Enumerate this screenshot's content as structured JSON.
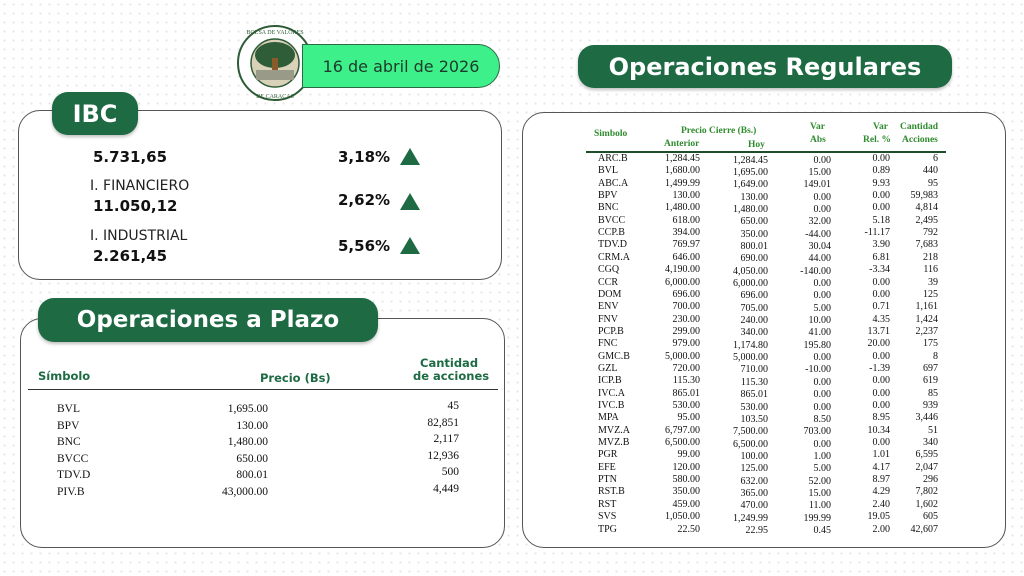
{
  "header": {
    "logo_text": "BOLSA DE VALORES DE CARACAS",
    "date": "16 de abril de 2026",
    "colors": {
      "brand": "#1d6a43",
      "date_pill": "#3ef08a"
    }
  },
  "ibc": {
    "title": "IBC",
    "rows": [
      {
        "label": "",
        "value": "5.731,65",
        "pct": "3,18%",
        "trend": "up"
      },
      {
        "label": "I. FINANCIERO",
        "value": "11.050,12",
        "pct": "2,62%",
        "trend": "up"
      },
      {
        "label": "I. INDUSTRIAL",
        "value": "2.261,45",
        "pct": "5,56%",
        "trend": "up"
      }
    ]
  },
  "plazo": {
    "title": "Operaciones a Plazo",
    "headers": {
      "simbolo": "Símbolo",
      "precio": "Precio (Bs)",
      "cantidad_1": "Cantidad",
      "cantidad_2": "de acciones"
    },
    "rows": [
      [
        "BVL",
        "1,695.00",
        "45"
      ],
      [
        "BPV",
        "130.00",
        "82,851"
      ],
      [
        "BNC",
        "1,480.00",
        "2,117"
      ],
      [
        "BVCC",
        "650.00",
        "12,936"
      ],
      [
        "TDV.D",
        "800.01",
        "500"
      ],
      [
        "PIV.B",
        "43,000.00",
        "4,449"
      ]
    ]
  },
  "regulares": {
    "title": "Operaciones Regulares",
    "headers": {
      "simbolo": "Simbolo",
      "precio_cierre": "Precio Cierre (Bs.)",
      "anterior": "Anterior",
      "hoy": "Hoy",
      "var_1": "Var",
      "abs": "Abs",
      "var_2": "Var",
      "rel": "Rel. %",
      "cantidad": "Cantidad",
      "acciones": "Acciones"
    },
    "rows": [
      [
        "ARC.B",
        "1,284.45",
        "1,284.45",
        "0.00",
        "0.00",
        "6"
      ],
      [
        "BVL",
        "1,680.00",
        "1,695.00",
        "15.00",
        "0.89",
        "440"
      ],
      [
        "ABC.A",
        "1,499.99",
        "1,649.00",
        "149.01",
        "9.93",
        "95"
      ],
      [
        "BPV",
        "130.00",
        "130.00",
        "0.00",
        "0.00",
        "59,983"
      ],
      [
        "BNC",
        "1,480.00",
        "1,480.00",
        "0.00",
        "0.00",
        "4,814"
      ],
      [
        "BVCC",
        "618.00",
        "650.00",
        "32.00",
        "5.18",
        "2,495"
      ],
      [
        "CCP.B",
        "394.00",
        "350.00",
        "-44.00",
        "-11.17",
        "792"
      ],
      [
        "TDV.D",
        "769.97",
        "800.01",
        "30.04",
        "3.90",
        "7,683"
      ],
      [
        "CRM.A",
        "646.00",
        "690.00",
        "44.00",
        "6.81",
        "218"
      ],
      [
        "CGQ",
        "4,190.00",
        "4,050.00",
        "-140.00",
        "-3.34",
        "116"
      ],
      [
        "CCR",
        "6,000.00",
        "6,000.00",
        "0.00",
        "0.00",
        "39"
      ],
      [
        "DOM",
        "696.00",
        "696.00",
        "0.00",
        "0.00",
        "125"
      ],
      [
        "ENV",
        "700.00",
        "705.00",
        "5.00",
        "0.71",
        "1,161"
      ],
      [
        "FNV",
        "230.00",
        "240.00",
        "10.00",
        "4.35",
        "1,424"
      ],
      [
        "PCP.B",
        "299.00",
        "340.00",
        "41.00",
        "13.71",
        "2,237"
      ],
      [
        "FNC",
        "979.00",
        "1,174.80",
        "195.80",
        "20.00",
        "175"
      ],
      [
        "GMC.B",
        "5,000.00",
        "5,000.00",
        "0.00",
        "0.00",
        "8"
      ],
      [
        "GZL",
        "720.00",
        "710.00",
        "-10.00",
        "-1.39",
        "697"
      ],
      [
        "ICP.B",
        "115.30",
        "115.30",
        "0.00",
        "0.00",
        "619"
      ],
      [
        "IVC.A",
        "865.01",
        "865.01",
        "0.00",
        "0.00",
        "85"
      ],
      [
        "IVC.B",
        "530.00",
        "530.00",
        "0.00",
        "0.00",
        "939"
      ],
      [
        "MPA",
        "95.00",
        "103.50",
        "8.50",
        "8.95",
        "3,446"
      ],
      [
        "MVZ.A",
        "6,797.00",
        "7,500.00",
        "703.00",
        "10.34",
        "51"
      ],
      [
        "MVZ.B",
        "6,500.00",
        "6,500.00",
        "0.00",
        "0.00",
        "340"
      ],
      [
        "PGR",
        "99.00",
        "100.00",
        "1.00",
        "1.01",
        "6,595"
      ],
      [
        "EFE",
        "120.00",
        "125.00",
        "5.00",
        "4.17",
        "2,047"
      ],
      [
        "PTN",
        "580.00",
        "632.00",
        "52.00",
        "8.97",
        "296"
      ],
      [
        "RST.B",
        "350.00",
        "365.00",
        "15.00",
        "4.29",
        "7,802"
      ],
      [
        "RST",
        "459.00",
        "470.00",
        "11.00",
        "2.40",
        "1,602"
      ],
      [
        "SVS",
        "1,050.00",
        "1,249.99",
        "199.99",
        "19.05",
        "605"
      ],
      [
        "TPG",
        "22.50",
        "22.95",
        "0.45",
        "2.00",
        "42,607"
      ]
    ]
  }
}
